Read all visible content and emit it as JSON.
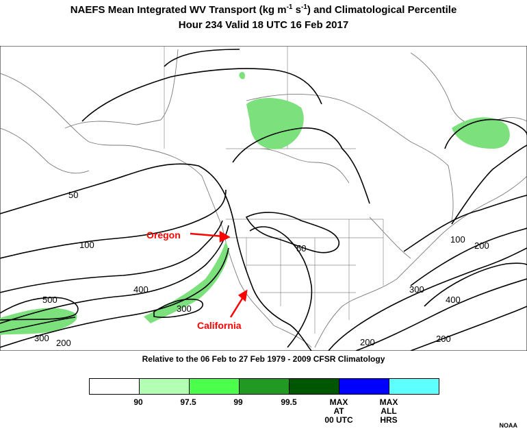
{
  "title": {
    "line1_pre": "NAEFS Mean Integrated WV Transport (kg m",
    "line1_sup1": "-1",
    "line1_mid": " s",
    "line1_sup2": "-1",
    "line1_post": ") and Climatological Percentile",
    "line2": "Hour 234 Valid 18 UTC 16 Feb 2017"
  },
  "map": {
    "annotations": [
      "Oregon",
      "California"
    ],
    "contour_labels": [
      "50",
      "100",
      "400",
      "500",
      "300",
      "200",
      "50",
      "100",
      "200",
      "300",
      "400",
      "200",
      "200",
      "300"
    ],
    "colors": {
      "arrow": "#ff0000",
      "contour": "#000000",
      "coast": "#888888",
      "shade": "#7ce07c"
    }
  },
  "climatology_note": "Relative to the 06 Feb to 27 Feb 1979 - 2009 CFSR Climatology",
  "legend": {
    "swatches": [
      "#ffffff",
      "#b3ffb3",
      "#4dff4d",
      "#229922",
      "#005500",
      "#0000ff",
      "#5effff"
    ],
    "labels": [
      "90",
      "97.5",
      "99",
      "99.5",
      "MAX\nAT\n00 UTC",
      "MAX\nALL\nHRS"
    ]
  },
  "credit": "NOAA"
}
